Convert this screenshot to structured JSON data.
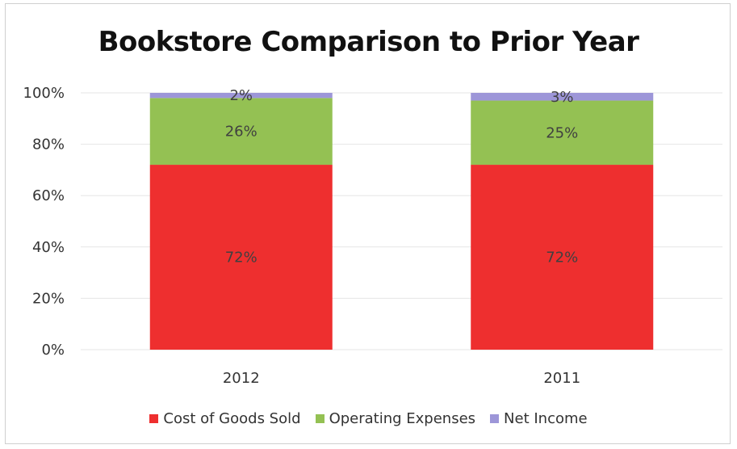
{
  "chart_data": {
    "type": "bar",
    "stacked": true,
    "percent": true,
    "title": "Bookstore Comparison to Prior Year",
    "categories": [
      "2012",
      "2011"
    ],
    "series": [
      {
        "name": "Cost of Goods Sold",
        "values": [
          72,
          72
        ],
        "labels": [
          "72%",
          "72%"
        ],
        "color": "#ee2f2f"
      },
      {
        "name": "Operating Expenses",
        "values": [
          26,
          25
        ],
        "labels": [
          "26%",
          "25%"
        ],
        "color": "#94c153"
      },
      {
        "name": "Net Income",
        "values": [
          2,
          3
        ],
        "labels": [
          "2%",
          "3%"
        ],
        "color": "#9d96d8"
      }
    ],
    "yticks": [
      "0%",
      "20%",
      "40%",
      "60%",
      "80%",
      "100%"
    ],
    "ylim": [
      0,
      100
    ],
    "xlabel": "",
    "ylabel": "",
    "grid": true,
    "legend_position": "bottom"
  }
}
